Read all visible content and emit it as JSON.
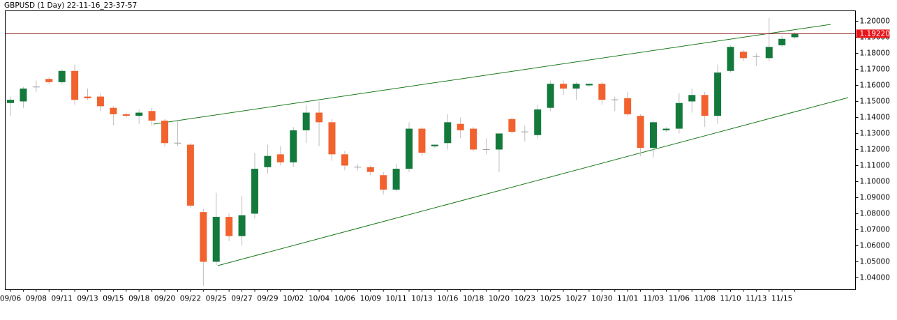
{
  "chart_data": {
    "type": "candlestick",
    "title": "GBPUSD (1 Day) 22-11-16_23-37-57",
    "categories": [
      "09/06",
      null,
      "09/08",
      null,
      "09/11",
      null,
      "09/13",
      null,
      "09/15",
      null,
      "09/18",
      null,
      "09/20",
      null,
      "09/22",
      null,
      "09/25",
      null,
      "09/27",
      null,
      "09/29",
      null,
      "10/02",
      null,
      "10/04",
      null,
      "10/06",
      null,
      "10/09",
      null,
      "10/11",
      null,
      "10/13",
      null,
      "10/16",
      null,
      "10/18",
      null,
      "10/20",
      null,
      "10/23",
      null,
      "10/25",
      null,
      "10/27",
      null,
      "10/30",
      null,
      "11/01",
      null,
      "11/03",
      null,
      "11/06",
      null,
      "11/08",
      null,
      "11/10",
      null,
      "11/13",
      null,
      "11/15",
      null
    ],
    "open": [
      1.149,
      1.15,
      1.159,
      1.164,
      1.162,
      1.169,
      1.153,
      1.153,
      1.146,
      1.142,
      1.141,
      1.144,
      1.138,
      1.124,
      1.123,
      1.081,
      1.05,
      1.078,
      1.066,
      1.08,
      1.109,
      1.117,
      1.112,
      1.132,
      1.143,
      1.137,
      1.117,
      1.109,
      1.109,
      1.104,
      1.095,
      1.108,
      1.133,
      1.122,
      1.124,
      1.136,
      1.133,
      1.12,
      1.12,
      1.139,
      1.131,
      1.129,
      1.146,
      1.161,
      1.158,
      1.16,
      1.161,
      1.151,
      1.152,
      1.141,
      1.121,
      1.132,
      1.133,
      1.15,
      1.154,
      1.141,
      1.169,
      1.181,
      1.178,
      1.177,
      1.185,
      1.19
    ],
    "high": [
      1.153,
      1.159,
      1.163,
      1.165,
      1.17,
      1.173,
      1.158,
      1.155,
      1.147,
      1.143,
      1.145,
      1.146,
      1.139,
      1.138,
      1.124,
      1.083,
      1.093,
      1.08,
      1.091,
      1.118,
      1.123,
      1.122,
      1.134,
      1.148,
      1.15,
      1.139,
      1.119,
      1.111,
      1.11,
      1.106,
      1.111,
      1.137,
      1.134,
      1.123,
      1.142,
      1.14,
      1.134,
      1.127,
      1.13,
      1.14,
      1.135,
      1.148,
      1.163,
      1.163,
      1.162,
      1.161,
      1.162,
      1.153,
      1.156,
      1.142,
      1.138,
      1.134,
      1.155,
      1.158,
      1.156,
      1.173,
      1.185,
      1.182,
      1.18,
      1.202,
      1.191,
      1.193
    ],
    "low": [
      1.141,
      1.146,
      1.156,
      1.161,
      1.161,
      1.148,
      1.151,
      1.144,
      1.135,
      1.14,
      1.136,
      1.135,
      1.122,
      1.122,
      1.084,
      1.035,
      1.048,
      1.063,
      1.06,
      1.077,
      1.105,
      1.11,
      1.109,
      1.124,
      1.122,
      1.113,
      1.107,
      1.107,
      1.104,
      1.092,
      1.094,
      1.106,
      1.116,
      1.121,
      1.12,
      1.127,
      1.119,
      1.117,
      1.106,
      1.13,
      1.125,
      1.127,
      1.144,
      1.154,
      1.151,
      1.159,
      1.148,
      1.144,
      1.141,
      1.116,
      1.115,
      1.131,
      1.13,
      1.143,
      1.134,
      1.136,
      1.168,
      1.175,
      1.172,
      1.175,
      1.184,
      1.189
    ],
    "close": [
      1.151,
      1.158,
      1.159,
      1.162,
      1.169,
      1.151,
      1.152,
      1.147,
      1.142,
      1.141,
      1.143,
      1.138,
      1.124,
      1.124,
      1.085,
      1.05,
      1.078,
      1.066,
      1.079,
      1.108,
      1.116,
      1.112,
      1.132,
      1.143,
      1.137,
      1.117,
      1.11,
      1.109,
      1.106,
      1.095,
      1.108,
      1.133,
      1.118,
      1.123,
      1.137,
      1.132,
      1.12,
      1.12,
      1.13,
      1.131,
      1.131,
      1.145,
      1.161,
      1.158,
      1.161,
      1.161,
      1.151,
      1.151,
      1.142,
      1.121,
      1.137,
      1.133,
      1.149,
      1.154,
      1.141,
      1.168,
      1.184,
      1.177,
      1.178,
      1.184,
      1.189,
      1.1922
    ],
    "up_color": "#137a3c",
    "down_color": "#f2622e",
    "ylim": [
      1.0326,
      1.2065
    ],
    "yticks": [
      {
        "value": 1.04,
        "label": "1.04000"
      },
      {
        "value": 1.05,
        "label": "1.05000"
      },
      {
        "value": 1.06,
        "label": "1.06000"
      },
      {
        "value": 1.07,
        "label": "1.07000"
      },
      {
        "value": 1.08,
        "label": "1.08000"
      },
      {
        "value": 1.09,
        "label": "1.09000"
      },
      {
        "value": 1.1,
        "label": "1.10000"
      },
      {
        "value": 1.11,
        "label": "1.11000"
      },
      {
        "value": 1.12,
        "label": "1.12000"
      },
      {
        "value": 1.13,
        "label": "1.13000"
      },
      {
        "value": 1.14,
        "label": "1.14000"
      },
      {
        "value": 1.15,
        "label": "1.15000"
      },
      {
        "value": 1.16,
        "label": "1.16000"
      },
      {
        "value": 1.17,
        "label": "1.17000"
      },
      {
        "value": 1.18,
        "label": "1.18000"
      },
      {
        "value": 1.19,
        "label": "1.19000"
      },
      {
        "value": 1.2,
        "label": "1.20000"
      }
    ],
    "last_price": {
      "value": 1.1922,
      "label": "1.19220"
    },
    "last_price_color": "#e8141b",
    "grid": false
  }
}
